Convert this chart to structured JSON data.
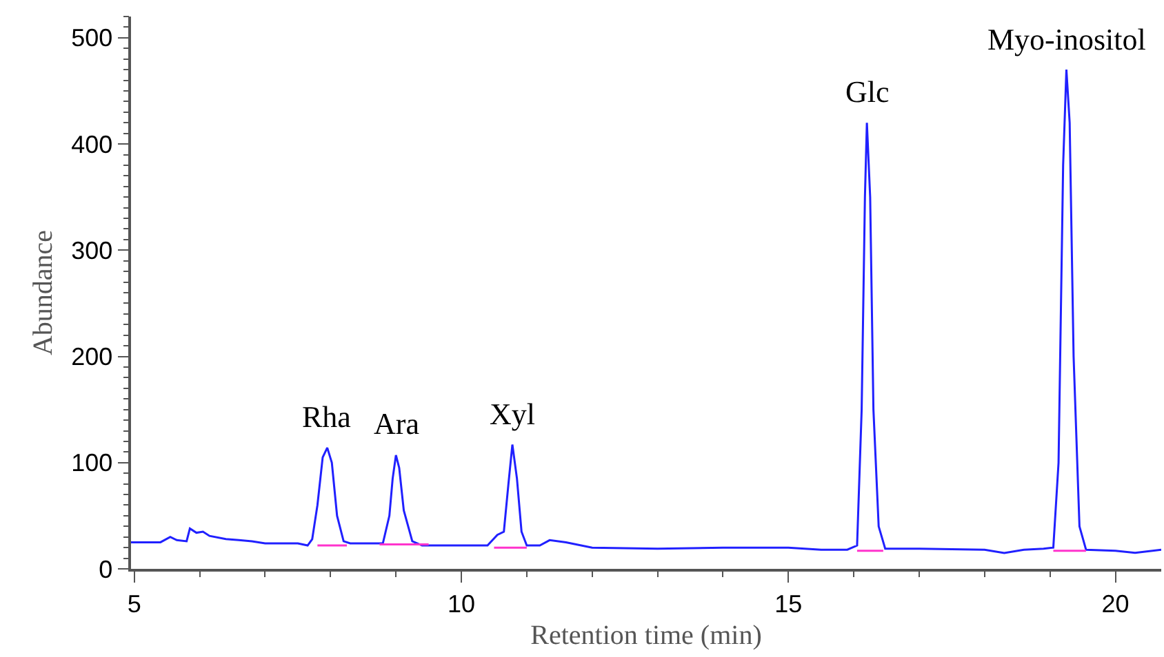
{
  "chart_data": {
    "type": "line",
    "xlabel": "Retention time (min)",
    "ylabel": "Abundance",
    "xlim": [
      4.95,
      20.7
    ],
    "ylim": [
      0,
      520
    ],
    "xticks": [
      5,
      10,
      15,
      20
    ],
    "yticks": [
      0,
      100,
      200,
      300,
      400,
      500
    ],
    "grid": false,
    "marker": "none",
    "line_style": "solid",
    "series": [
      {
        "color": "#2020ff",
        "x": [
          4.95,
          5.4,
          5.55,
          5.65,
          5.8,
          5.85,
          5.95,
          6.05,
          6.15,
          6.4,
          6.6,
          6.8,
          7.0,
          7.5,
          7.65,
          7.72,
          7.8,
          7.88,
          7.95,
          8.02,
          8.1,
          8.2,
          8.3,
          8.8,
          8.9,
          8.95,
          9.0,
          9.05,
          9.12,
          9.25,
          9.4,
          10.4,
          10.55,
          10.65,
          10.72,
          10.78,
          10.85,
          10.92,
          11.0,
          11.2,
          11.35,
          11.6,
          12.0,
          13.0,
          14.0,
          15.0,
          15.5,
          15.9,
          16.05,
          16.12,
          16.17,
          16.2,
          16.25,
          16.3,
          16.38,
          16.48,
          17.0,
          18.0,
          18.3,
          18.6,
          18.9,
          19.05,
          19.13,
          19.2,
          19.25,
          19.3,
          19.36,
          19.45,
          19.55,
          20.0,
          20.3,
          20.7
        ],
        "values": [
          25,
          25,
          30,
          27,
          26,
          38,
          34,
          35,
          31,
          28,
          27,
          26,
          24,
          24,
          22,
          28,
          60,
          105,
          114,
          100,
          50,
          26,
          24,
          24,
          50,
          85,
          107,
          95,
          55,
          26,
          22,
          22,
          32,
          35,
          80,
          117,
          85,
          35,
          22,
          22,
          27,
          25,
          20,
          19,
          20,
          20,
          18,
          18,
          22,
          150,
          350,
          420,
          350,
          150,
          40,
          19,
          19,
          18,
          15,
          18,
          19,
          20,
          100,
          380,
          470,
          420,
          200,
          40,
          18,
          17,
          15,
          18
        ]
      },
      {
        "color": "#ff33cc",
        "x": [
          7.8,
          8.25,
          8.26,
          8.75,
          9.5,
          9.51,
          10.5,
          11.0,
          11.01,
          16.05,
          16.45,
          16.46,
          19.05,
          19.55
        ],
        "values": [
          22,
          22,
          null,
          23,
          23,
          null,
          20,
          20,
          null,
          17,
          17,
          null,
          17,
          17
        ]
      }
    ],
    "annotations": [
      {
        "text": "Rha",
        "x": 7.95,
        "y": 114
      },
      {
        "text": "Ara",
        "x": 9.0,
        "y": 107
      },
      {
        "text": "Xyl",
        "x": 10.78,
        "y": 117
      },
      {
        "text": "Glc",
        "x": 16.2,
        "y": 420
      },
      {
        "text": "Myo-inositol",
        "x": 19.25,
        "y": 470
      }
    ]
  }
}
